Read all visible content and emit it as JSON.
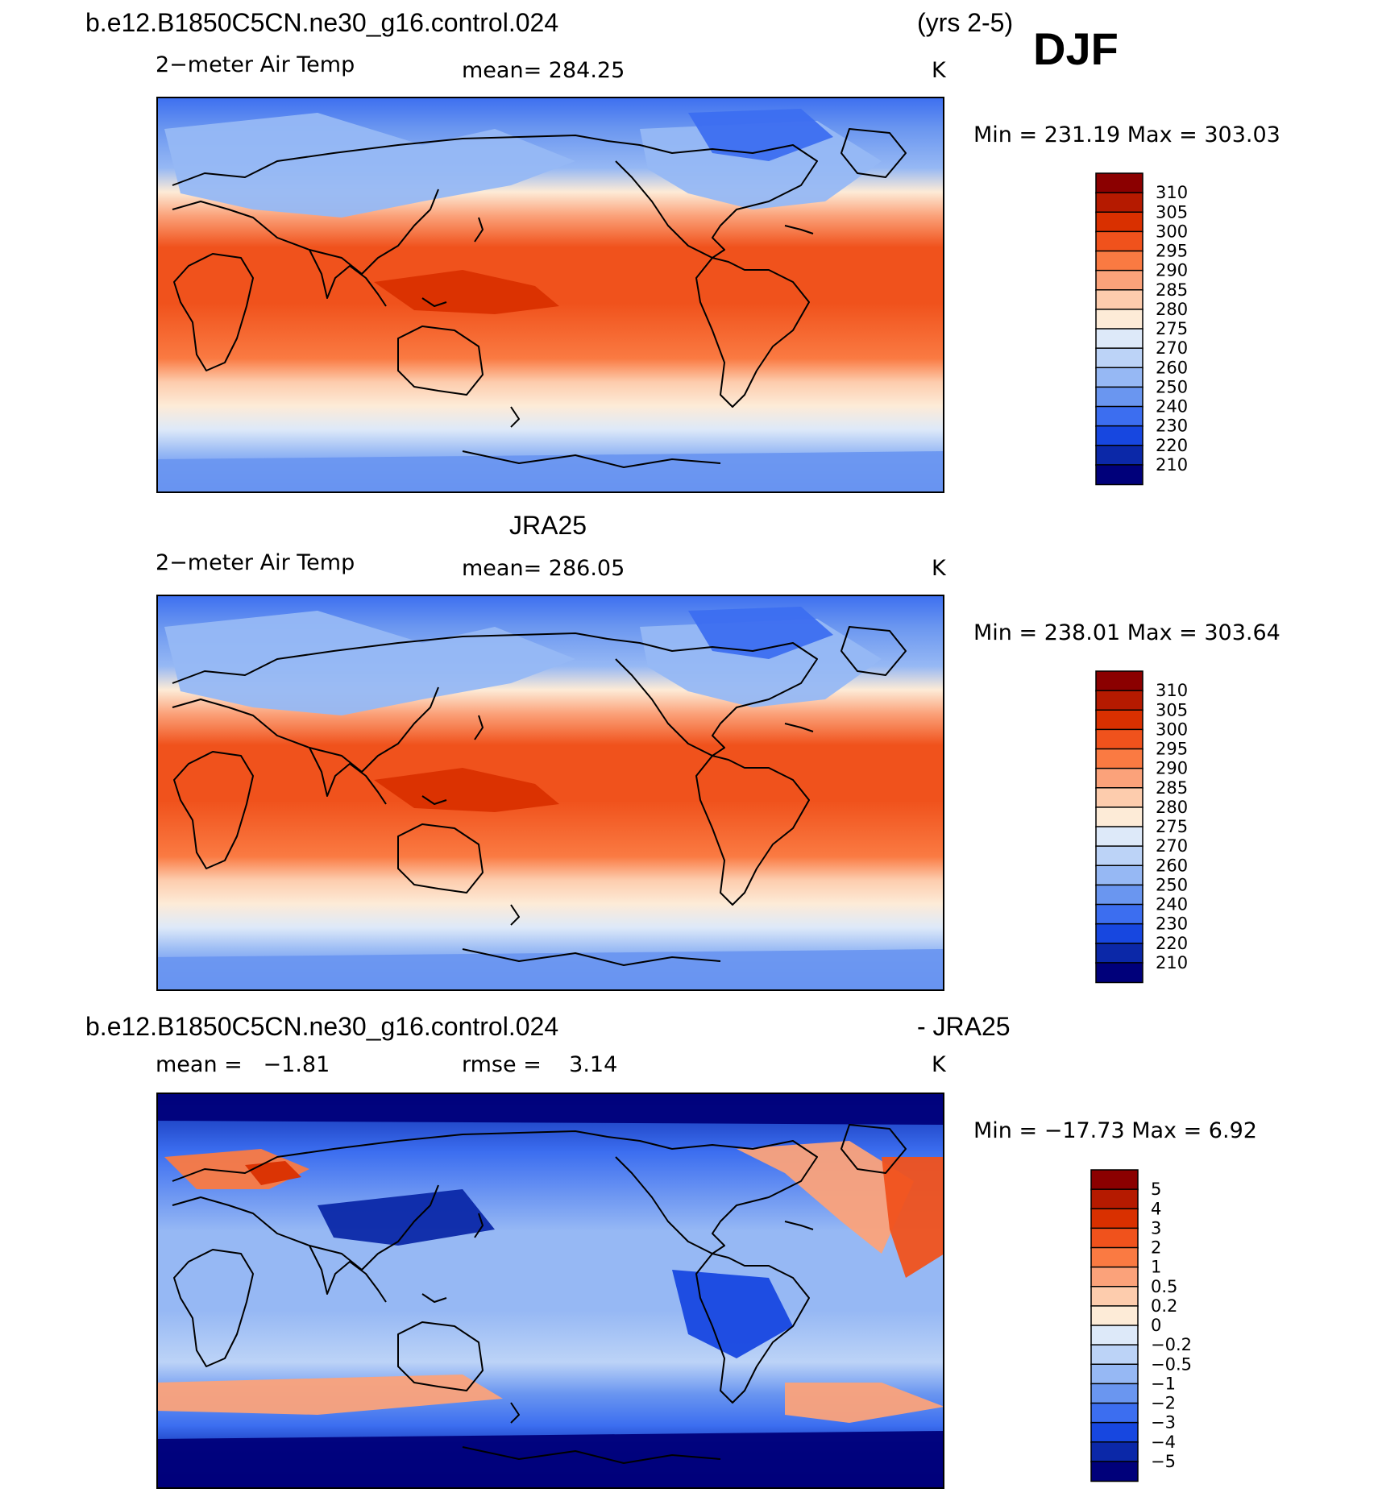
{
  "header": {
    "case_name": "b.e12.B1850C5CN.ne30_g16.control.024",
    "years": "(yrs 2-5)",
    "season": "DJF"
  },
  "panels": [
    {
      "id": "model",
      "variable": "2−meter Air Temp",
      "stat_label": "mean=",
      "stat_value": "284.25",
      "units": "K",
      "minmax": "Min  =  231.19  Max  =  303.03"
    },
    {
      "id": "obs",
      "title": "JRA25",
      "variable": "2−meter Air Temp",
      "stat_label": "mean=",
      "stat_value": "286.05",
      "units": "K",
      "minmax": "Min  =  238.01  Max  =  303.64"
    },
    {
      "id": "diff",
      "title_left": "b.e12.B1850C5CN.ne30_g16.control.024",
      "title_right": "- JRA25",
      "stat1_label": "mean =",
      "stat1_value": "−1.81",
      "stat2_label": "rmse =",
      "stat2_value": "3.14",
      "units": "K",
      "minmax": "Min  =  −17.73  Max  =     6.92"
    }
  ],
  "chart_data": [
    {
      "type": "heatmap",
      "title": "2-meter Air Temp (model, DJF)",
      "mean": 284.25,
      "min": 231.19,
      "max": 303.03,
      "units": "K",
      "colorbar_levels": [
        "310",
        "305",
        "300",
        "295",
        "290",
        "285",
        "280",
        "275",
        "270",
        "260",
        "250",
        "240",
        "230",
        "220",
        "210"
      ],
      "colorbar_colors": [
        "#8b0000",
        "#b51a00",
        "#d93000",
        "#f0521c",
        "#fa7a42",
        "#fba27a",
        "#fdccad",
        "#fdebd7",
        "#dde9f9",
        "#bcd3f7",
        "#96b8f4",
        "#6a96f0",
        "#3c6ef0",
        "#1747e0",
        "#0b28a8",
        "#00007a"
      ]
    },
    {
      "type": "heatmap",
      "title": "2-meter Air Temp (JRA25, DJF)",
      "mean": 286.05,
      "min": 238.01,
      "max": 303.64,
      "units": "K",
      "colorbar_levels": [
        "310",
        "305",
        "300",
        "295",
        "290",
        "285",
        "280",
        "275",
        "270",
        "260",
        "250",
        "240",
        "230",
        "220",
        "210"
      ],
      "colorbar_colors": [
        "#8b0000",
        "#b51a00",
        "#d93000",
        "#f0521c",
        "#fa7a42",
        "#fba27a",
        "#fdccad",
        "#fdebd7",
        "#dde9f9",
        "#bcd3f7",
        "#96b8f4",
        "#6a96f0",
        "#3c6ef0",
        "#1747e0",
        "#0b28a8",
        "#00007a"
      ]
    },
    {
      "type": "heatmap",
      "title": "2-meter Air Temp difference (model - JRA25, DJF)",
      "mean": -1.81,
      "rmse": 3.14,
      "min": -17.73,
      "max": 6.92,
      "units": "K",
      "colorbar_levels": [
        "5",
        "4",
        "3",
        "2",
        "1",
        "0.5",
        "0.2",
        "0",
        "−0.2",
        "−0.5",
        "−1",
        "−2",
        "−3",
        "−4",
        "−5"
      ],
      "colorbar_colors": [
        "#8b0000",
        "#b51a00",
        "#d93000",
        "#f0521c",
        "#fa7a42",
        "#fba27a",
        "#fdccad",
        "#fdebd7",
        "#dde9f9",
        "#bcd3f7",
        "#96b8f4",
        "#6a96f0",
        "#3c6ef0",
        "#1747e0",
        "#0b28a8",
        "#00007a"
      ]
    }
  ]
}
